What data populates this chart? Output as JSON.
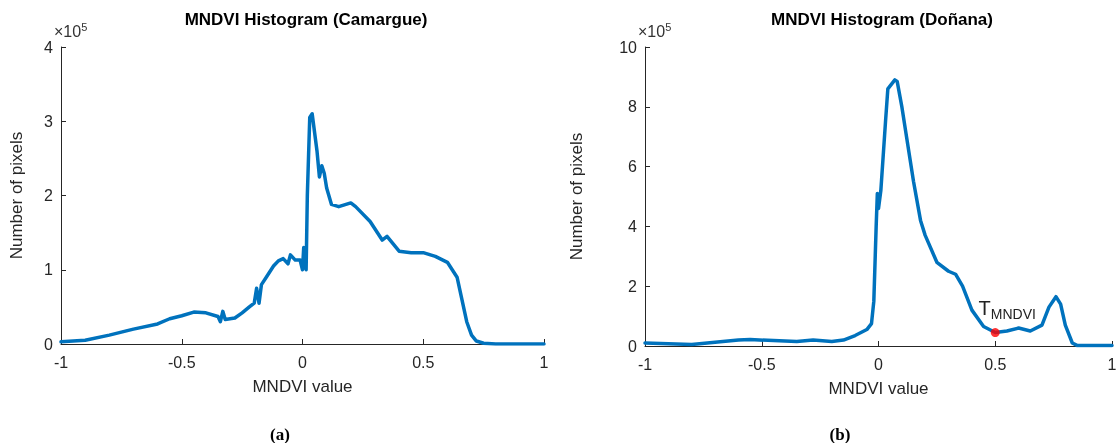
{
  "chart_data": [
    {
      "type": "line",
      "title": "MNDVI Histogram (Camargue)",
      "xlabel": "MNDVI value",
      "ylabel": "Number of pixels",
      "annotations": [
        "×10$^{5}$",
        "(a)"
      ],
      "xlim": [
        -1,
        1
      ],
      "xticks": [
        -1,
        -0.5,
        0,
        0.5,
        1
      ],
      "ylim": [
        0,
        4
      ],
      "yticks": [
        0,
        1,
        2,
        3,
        4
      ],
      "series": [
        {
          "color": "#0072bd",
          "x": [
            -1,
            -0.9,
            -0.8,
            -0.7,
            -0.6,
            -0.55,
            -0.5,
            -0.45,
            -0.4,
            -0.35,
            -0.34,
            -0.33,
            -0.32,
            -0.28,
            -0.25,
            -0.22,
            -0.2,
            -0.19,
            -0.18,
            -0.17,
            -0.15,
            -0.12,
            -0.1,
            -0.08,
            -0.06,
            -0.05,
            -0.03,
            -0.01,
            0,
            0.005,
            0.01,
            0.015,
            0.02,
            0.03,
            0.04,
            0.06,
            0.07,
            0.08,
            0.09,
            0.1,
            0.12,
            0.15,
            0.2,
            0.22,
            0.28,
            0.33,
            0.35,
            0.4,
            0.45,
            0.5,
            0.55,
            0.6,
            0.64,
            0.66,
            0.68,
            0.7,
            0.72,
            0.75,
            0.8,
            1
          ],
          "values": [
            0.03,
            0.05,
            0.12,
            0.2,
            0.27,
            0.34,
            0.38,
            0.43,
            0.42,
            0.37,
            0.3,
            0.44,
            0.33,
            0.35,
            0.42,
            0.5,
            0.55,
            0.75,
            0.55,
            0.8,
            0.9,
            1.05,
            1.12,
            1.15,
            1.08,
            1.2,
            1.13,
            1.13,
            1.0,
            1.3,
            1.1,
            1.0,
            2.0,
            3.05,
            3.1,
            2.6,
            2.25,
            2.4,
            2.3,
            2.1,
            1.88,
            1.85,
            1.9,
            1.85,
            1.65,
            1.4,
            1.45,
            1.25,
            1.23,
            1.23,
            1.18,
            1.1,
            0.9,
            0.6,
            0.3,
            0.12,
            0.04,
            0.01,
            0,
            0
          ]
        }
      ]
    },
    {
      "type": "line",
      "title": "MNDVI Histogram (Doñana)",
      "xlabel": "MNDVI value",
      "ylabel": "Number of pixels",
      "annotations": [
        "×10$^{5}$",
        "(b)",
        {
          "text": "T$_{MNDVI}$",
          "x": 0.5,
          "y": 0.45
        }
      ],
      "xlim": [
        -1,
        1
      ],
      "xticks": [
        -1,
        -0.5,
        0,
        0.5,
        1
      ],
      "ylim": [
        0,
        10
      ],
      "yticks": [
        0,
        2,
        4,
        6,
        8,
        10
      ],
      "series": [
        {
          "color": "#0072bd",
          "x": [
            -1,
            -0.8,
            -0.6,
            -0.55,
            -0.45,
            -0.35,
            -0.28,
            -0.2,
            -0.15,
            -0.1,
            -0.05,
            -0.03,
            -0.02,
            -0.01,
            -0.005,
            0,
            0.01,
            0.03,
            0.04,
            0.07,
            0.08,
            0.1,
            0.12,
            0.15,
            0.18,
            0.2,
            0.25,
            0.3,
            0.33,
            0.36,
            0.4,
            0.45,
            0.5,
            0.55,
            0.6,
            0.65,
            0.7,
            0.73,
            0.76,
            0.78,
            0.8,
            0.83,
            0.85,
            1
          ],
          "values": [
            0.1,
            0.05,
            0.2,
            0.22,
            0.18,
            0.15,
            0.2,
            0.15,
            0.2,
            0.35,
            0.55,
            0.75,
            1.5,
            4.0,
            5.1,
            4.6,
            5.2,
            7.5,
            8.6,
            8.9,
            8.85,
            8.0,
            7.0,
            5.5,
            4.2,
            3.7,
            2.8,
            2.5,
            2.4,
            2.0,
            1.2,
            0.65,
            0.45,
            0.5,
            0.6,
            0.5,
            0.7,
            1.3,
            1.65,
            1.4,
            0.7,
            0.1,
            0.02,
            0.02
          ]
        },
        {
          "type": "scatter",
          "color": "#ff0000",
          "x": [
            0.5
          ],
          "values": [
            0.45
          ]
        }
      ]
    }
  ]
}
